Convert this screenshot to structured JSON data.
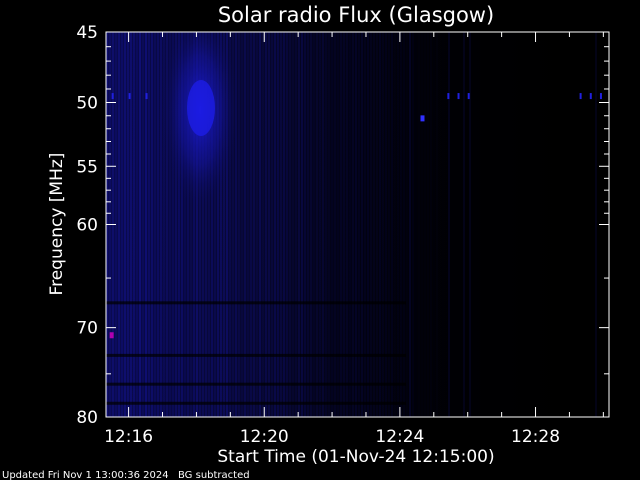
{
  "chart_data": {
    "type": "heatmap",
    "title": "Solar radio Flux (Glasgow)",
    "ylabel": "Frequency [MHz]",
    "xlabel": "Start Time (01-Nov-24 12:15:00)",
    "y_axis": {
      "scale": "log",
      "inverted": true,
      "range_mhz": [
        45,
        80
      ],
      "tick_labels": [
        "45",
        "50",
        "55",
        "60",
        "70",
        "80"
      ],
      "tick_values": [
        45,
        50,
        55,
        60,
        70,
        80
      ]
    },
    "x_axis": {
      "range_minutes": [
        12.25,
        12.5
      ],
      "tick_labels": [
        "12:16",
        "12:20",
        "12:24",
        "12:28"
      ],
      "tick_values_min": [
        16,
        20,
        24,
        28
      ],
      "start_time": "12:15:20",
      "end_time": "12:30:10"
    },
    "colormap": "black-to-blue",
    "features": [
      {
        "name": "broadband emission",
        "time_range": [
          "12:15:20",
          "12:21:30"
        ],
        "freq_range_mhz": [
          45,
          80
        ],
        "intensity": "moderate"
      },
      {
        "name": "burst",
        "time_range": [
          "12:17:20",
          "12:18:40"
        ],
        "freq_range_mhz": [
          45,
          80
        ],
        "peak_freq_mhz": 52.5,
        "intensity": "strongest"
      },
      {
        "name": "RFI spike",
        "time": "12:15:30",
        "freq_mhz": 70.8,
        "color": "#b000b0"
      },
      {
        "name": "RFI dot",
        "time": "12:24:40",
        "freq_mhz": 51.2,
        "color": "#3030ff"
      }
    ],
    "colors": {
      "background": "#000000",
      "emission": "#1a1ad8",
      "text": "#ffffff"
    }
  },
  "footer": {
    "updated": "Updated Fri Nov  1 13:00:36 2024",
    "note": "BG subtracted"
  }
}
